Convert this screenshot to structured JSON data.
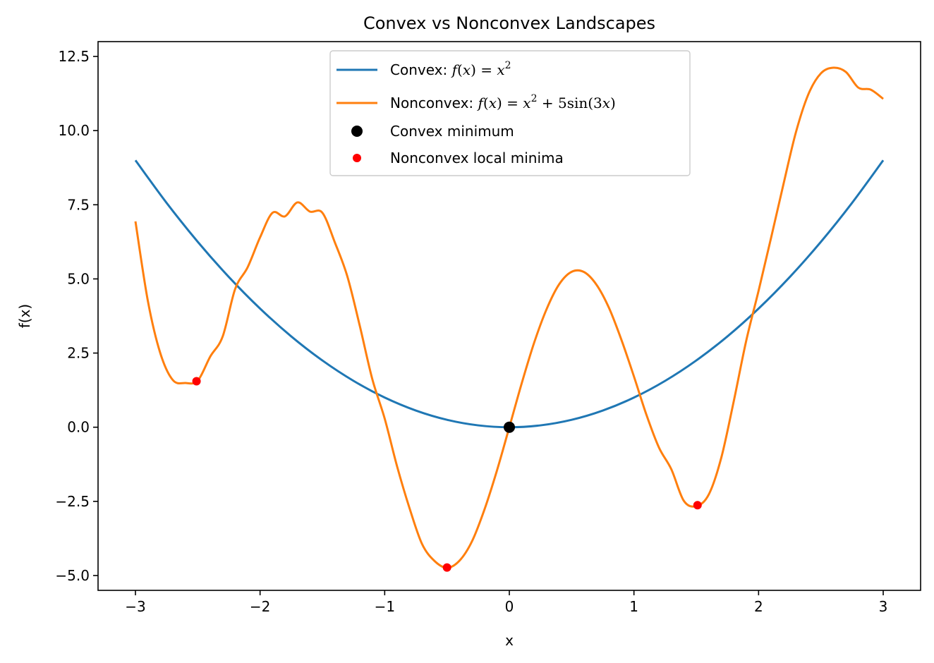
{
  "chart_data": {
    "type": "line",
    "title": "Convex vs Nonconvex Landscapes",
    "xlabel": "x",
    "ylabel": "f(x)",
    "xlim": [
      -3.3,
      3.3
    ],
    "ylim": [
      -5.5,
      13.0
    ],
    "xticks": [
      -3,
      -2,
      -1,
      0,
      1,
      2,
      3
    ],
    "xtick_labels": [
      "−3",
      "−2",
      "−1",
      "0",
      "1",
      "2",
      "3"
    ],
    "yticks": [
      -5.0,
      -2.5,
      0.0,
      2.5,
      5.0,
      7.5,
      10.0,
      12.5
    ],
    "ytick_labels": [
      "−5.0",
      "−2.5",
      "0.0",
      "2.5",
      "5.0",
      "7.5",
      "10.0",
      "12.5"
    ],
    "grid": false,
    "legend_position": "top-center",
    "series": [
      {
        "name": "Convex: f(x) = x²",
        "kind": "line",
        "color": "#1f77b4",
        "x": [
          -3.0,
          -2.75,
          -2.5,
          -2.25,
          -2.0,
          -1.75,
          -1.5,
          -1.25,
          -1.0,
          -0.75,
          -0.5,
          -0.25,
          0.0,
          0.25,
          0.5,
          0.75,
          1.0,
          1.25,
          1.5,
          1.75,
          2.0,
          2.25,
          2.5,
          2.75,
          3.0
        ],
        "y": [
          9.0,
          7.5625,
          6.25,
          5.0625,
          4.0,
          3.0625,
          2.25,
          1.5625,
          1.0,
          0.5625,
          0.25,
          0.0625,
          0.0,
          0.0625,
          0.25,
          0.5625,
          1.0,
          1.5625,
          2.25,
          3.0625,
          4.0,
          5.0625,
          6.25,
          7.5625,
          9.0
        ]
      },
      {
        "name": "Nonconvex: f(x) = x² + 5sin(3x)",
        "kind": "line",
        "color": "#ff7f0e",
        "x": [
          -3.0,
          -2.9,
          -2.8,
          -2.7,
          -2.6,
          -2.5,
          -2.4,
          -2.3,
          -2.2,
          -2.1,
          -2.0,
          -1.9,
          -1.8,
          -1.7,
          -1.6,
          -1.5,
          -1.4,
          -1.3,
          -1.2,
          -1.1,
          -1.0,
          -0.9,
          -0.8,
          -0.7,
          -0.6,
          -0.5,
          -0.4,
          -0.3,
          -0.2,
          -0.1,
          0.0,
          0.1,
          0.2,
          0.3,
          0.4,
          0.5,
          0.6,
          0.7,
          0.8,
          0.9,
          1.0,
          1.1,
          1.2,
          1.3,
          1.4,
          1.5,
          1.6,
          1.7,
          1.8,
          1.9,
          2.0,
          2.1,
          2.2,
          2.3,
          2.4,
          2.5,
          2.6,
          2.7,
          2.8,
          2.9,
          3.0
        ],
        "y": [
          6.94,
          4.25,
          2.49,
          1.59,
          1.49,
          1.57,
          2.38,
          3.06,
          4.66,
          5.39,
          6.4,
          7.23,
          7.11,
          7.58,
          7.27,
          7.23,
          6.23,
          5.09,
          3.42,
          1.63,
          0.29,
          -1.33,
          -2.74,
          -3.94,
          -4.51,
          -4.74,
          -4.5,
          -3.85,
          -2.78,
          -1.47,
          0.0,
          1.49,
          2.86,
          3.99,
          4.82,
          5.24,
          5.23,
          4.8,
          4.02,
          2.94,
          1.71,
          0.42,
          -0.68,
          -1.42,
          -2.48,
          -2.66,
          -2.27,
          -1.04,
          0.86,
          2.9,
          4.6,
          6.38,
          8.2,
          9.95,
          11.23,
          11.93,
          12.12,
          11.98,
          11.45,
          11.38,
          11.07
        ]
      },
      {
        "name": "Convex minimum",
        "kind": "scatter",
        "color": "#000000",
        "marker_size": 8,
        "x": [
          0.0
        ],
        "y": [
          0.0
        ]
      },
      {
        "name": "Nonconvex local minima",
        "kind": "scatter",
        "color": "#ff0000",
        "marker_size": 6,
        "x": [
          -2.51,
          -0.5,
          1.51
        ],
        "y": [
          1.55,
          -4.73,
          -2.63
        ]
      }
    ]
  }
}
